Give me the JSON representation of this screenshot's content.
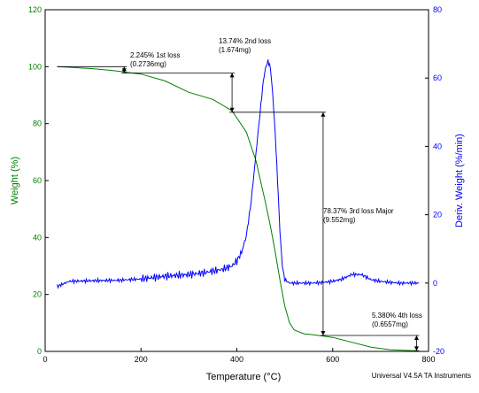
{
  "chart_data": {
    "type": "line",
    "xlabel": "Temperature (°C)",
    "ylabel_left": "Weight (%)",
    "ylabel_right": "Deriv. Weight (%/min)",
    "xlim": [
      0,
      800
    ],
    "ylim_left": [
      0,
      120
    ],
    "ylim_right": [
      -20,
      80
    ],
    "x_ticks": [
      "0",
      "200",
      "400",
      "600",
      "800"
    ],
    "y_left_ticks": [
      "0",
      "20",
      "40",
      "60",
      "80",
      "100",
      "120"
    ],
    "y_right_ticks": [
      "-20",
      "0",
      "20",
      "40",
      "60",
      "80"
    ],
    "grid": false,
    "footer": "Universal V4.5A TA Instruments",
    "series": [
      {
        "axis": "left",
        "color": "#008000",
        "x": [
          25,
          50,
          100,
          150,
          200,
          250,
          300,
          350,
          390,
          420,
          440,
          460,
          470,
          480,
          490,
          500,
          510,
          520,
          540,
          560,
          580,
          600,
          640,
          680,
          720,
          760,
          780
        ],
        "y": [
          100,
          99.8,
          99.3,
          98.5,
          97.4,
          95,
          91,
          88.5,
          84.5,
          77,
          67,
          52,
          44,
          35,
          25,
          16,
          10,
          7.5,
          6.2,
          5.8,
          5.4,
          4.9,
          3.2,
          1.5,
          0.6,
          0.3,
          0.2
        ]
      },
      {
        "axis": "right",
        "color": "#0000ff",
        "x": [
          25,
          50,
          100,
          150,
          200,
          250,
          300,
          330,
          350,
          370,
          390,
          400,
          410,
          420,
          430,
          440,
          450,
          455,
          460,
          465,
          470,
          475,
          480,
          485,
          490,
          495,
          500,
          510,
          520,
          540,
          560,
          580,
          600,
          620,
          640,
          660,
          680,
          700,
          720,
          740,
          760,
          780
        ],
        "y": [
          -1,
          0.5,
          0.7,
          0.8,
          1.2,
          2,
          2.5,
          3,
          3.5,
          4,
          5,
          6.5,
          9,
          14,
          24,
          38,
          52,
          59,
          63,
          65,
          63,
          55,
          44,
          30,
          15,
          5,
          1,
          0,
          0,
          0,
          0,
          0.2,
          0.5,
          1.2,
          2.5,
          2.5,
          1,
          0.5,
          0.2,
          0,
          0,
          0
        ]
      }
    ],
    "annotations": [
      {
        "lines": [
          "2.245% 1st loss",
          "(0.2736mg)"
        ],
        "from": [
          25,
          100
        ],
        "to": [
          165,
          97.8
        ]
      },
      {
        "lines": [
          "13.74% 2nd loss",
          "(1.674mg)"
        ],
        "from": [
          165,
          97.8
        ],
        "to": [
          390,
          84
        ]
      },
      {
        "lines": [
          "78.37% 3rd loss Major",
          "(9.552mg)"
        ],
        "from": [
          390,
          84
        ],
        "to": [
          580,
          5.6
        ]
      },
      {
        "lines": [
          "5.380% 4th loss",
          "(0.6557mg)"
        ],
        "from": [
          580,
          5.6
        ],
        "to": [
          775,
          0.2
        ]
      }
    ]
  }
}
